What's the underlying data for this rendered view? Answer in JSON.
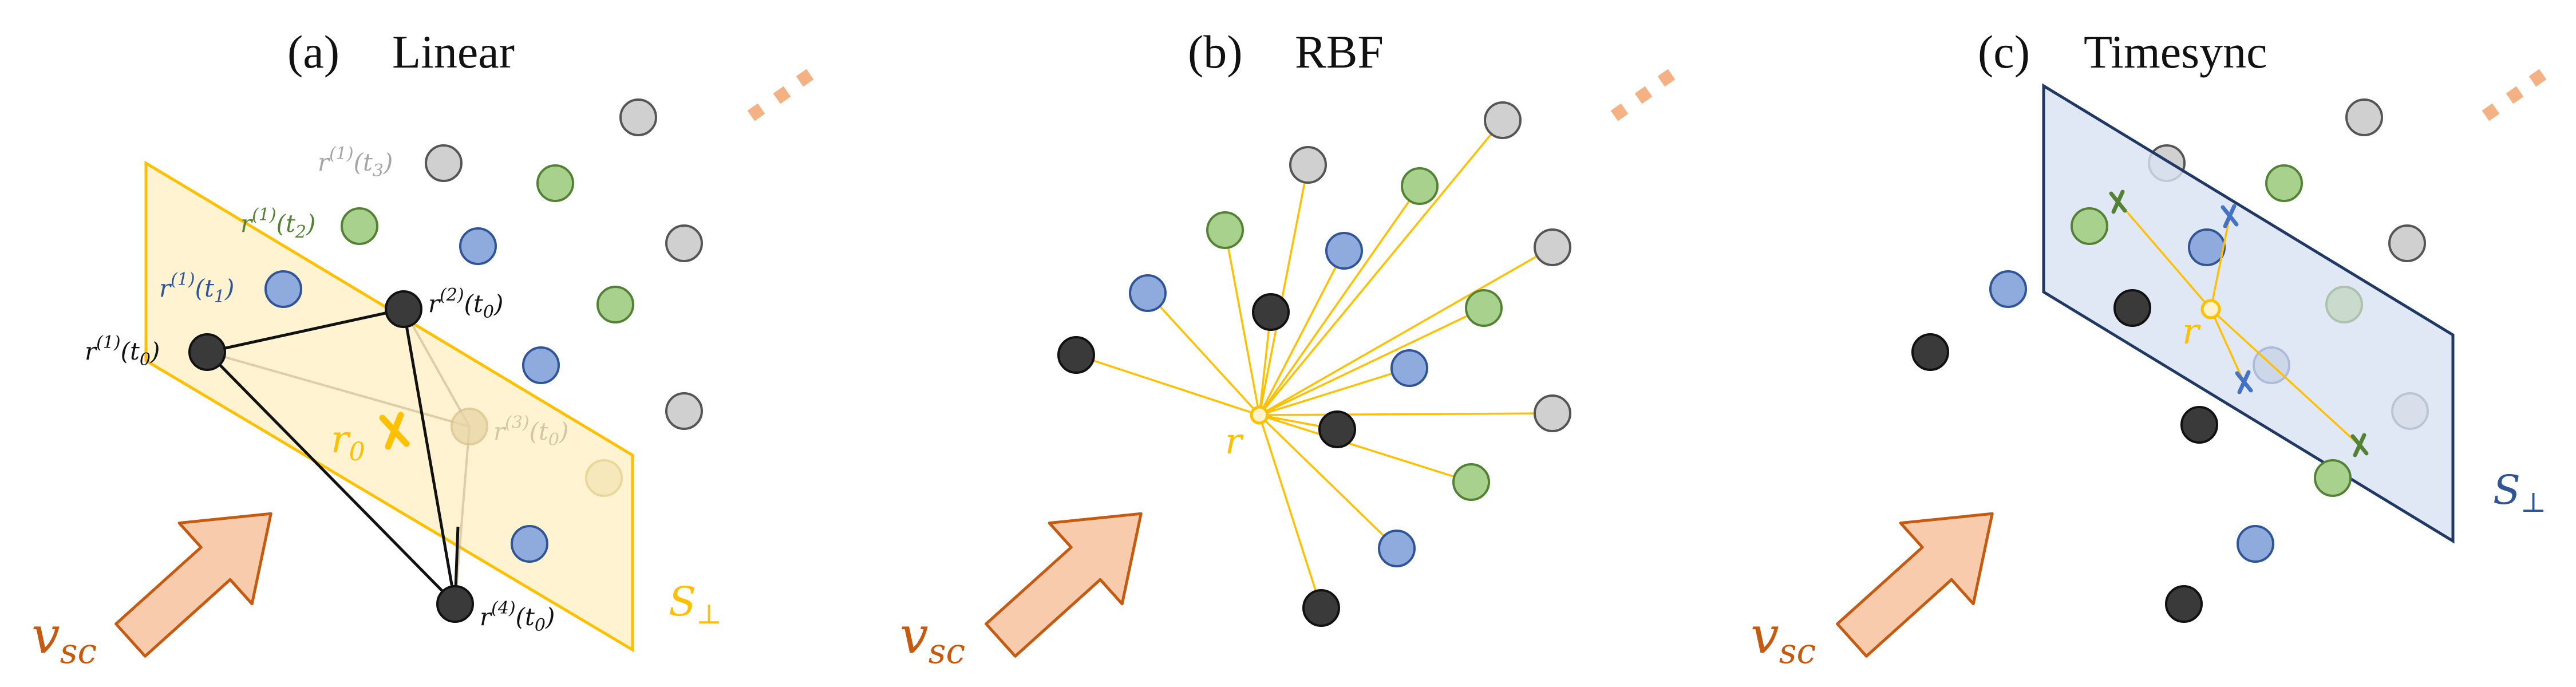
{
  "panels": {
    "a": {
      "tag": "(a)",
      "title": "Linear"
    },
    "b": {
      "tag": "(b)",
      "title": "RBF"
    },
    "c": {
      "tag": "(c)",
      "title": "Timesync"
    }
  },
  "labels": {
    "velocity": "v",
    "velocity_sub": "sc",
    "plane": "S",
    "plane_sub": "⊥",
    "r0": "r",
    "r0_sub": "0",
    "r": "r",
    "a_r1_t3": {
      "base": "r",
      "sup": "(1)",
      "arg": "(t",
      "sub": "3",
      "close": ")"
    },
    "a_r1_t2": {
      "base": "r",
      "sup": "(1)",
      "arg": "(t",
      "sub": "2",
      "close": ")"
    },
    "a_r1_t1": {
      "base": "r",
      "sup": "(1)",
      "arg": "(t",
      "sub": "1",
      "close": ")"
    },
    "a_r1_t0": {
      "base": "r",
      "sup": "(1)",
      "arg": "(t",
      "sub": "0",
      "close": ")"
    },
    "a_r2_t0": {
      "base": "r",
      "sup": "(2)",
      "arg": "(t",
      "sub": "0",
      "close": ")"
    },
    "a_r3_t0": {
      "base": "r",
      "sup": "(3)",
      "arg": "(t",
      "sub": "0",
      "close": ")"
    },
    "a_r4_t0": {
      "base": "r",
      "sup": "(4)",
      "arg": "(t",
      "sub": "0",
      "close": ")"
    }
  },
  "colors": {
    "black_node": "#3a3a3a",
    "blue_node": "#8faadc",
    "green_node": "#a9d18e",
    "gray_node": "#d0d0d0",
    "yellow": "#ffc000",
    "plane_yellow": "#fff2cc",
    "plane_blue": "#dae3f3",
    "plane_blue_edge": "#203864",
    "arrow_fill": "#f8cbad",
    "arrow_edge": "#c55a11",
    "dots": "#f4b183",
    "label_blue": "#2f5597",
    "label_green": "#548235",
    "label_gray": "#a6a6a6"
  }
}
